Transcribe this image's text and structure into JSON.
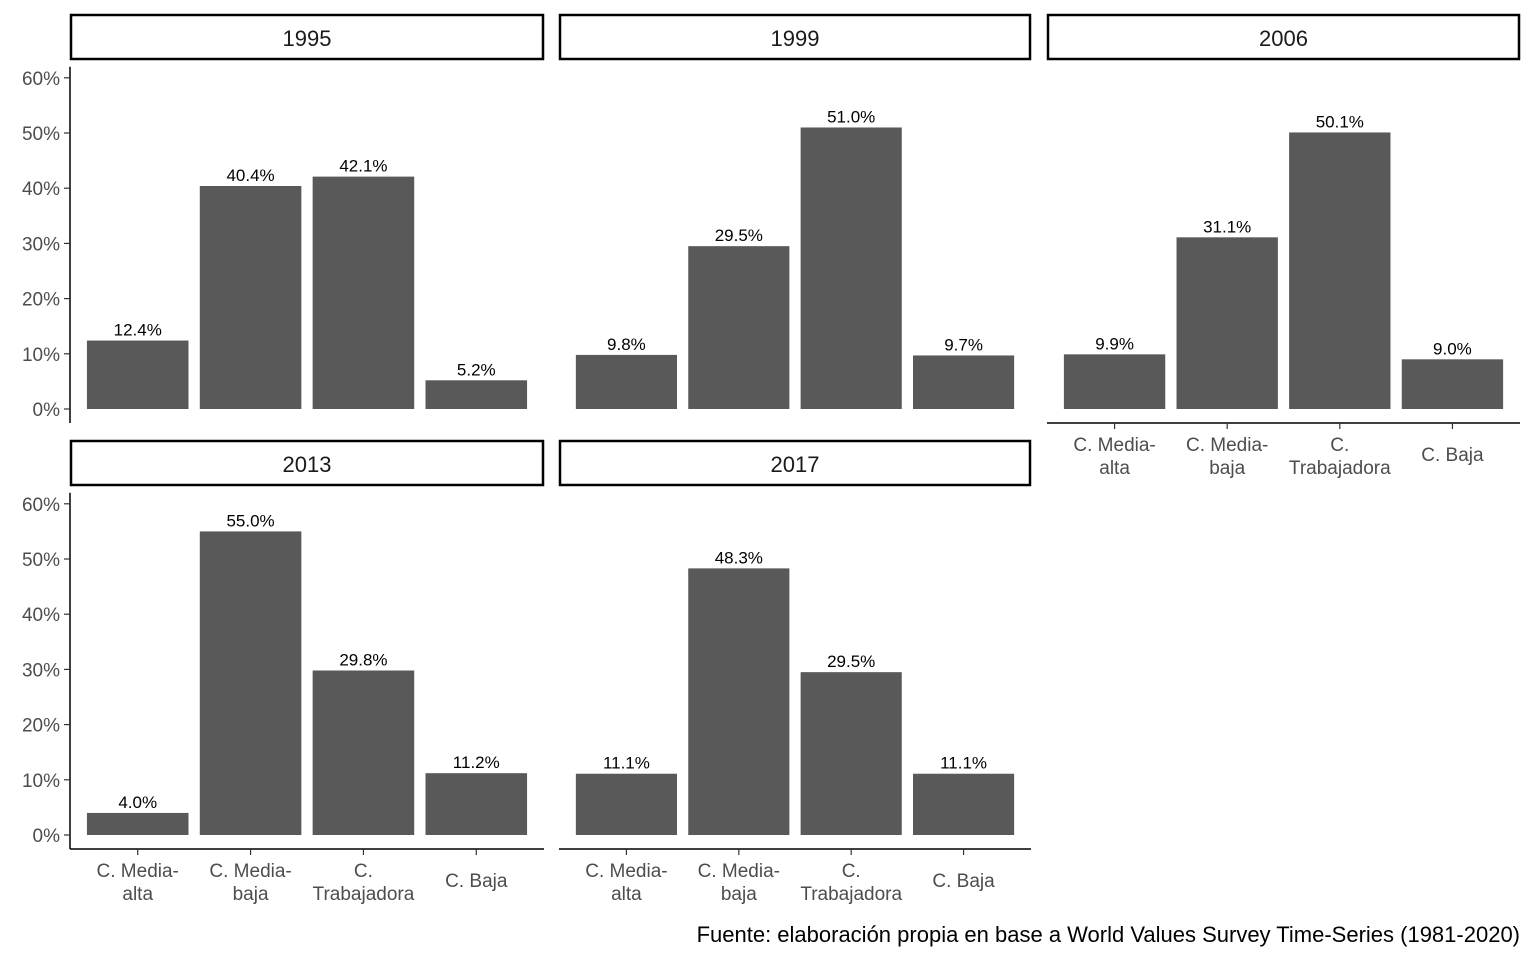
{
  "chart_data": {
    "type": "bar",
    "layout": "facet-wrap",
    "facet_columns": 3,
    "categories": [
      [
        "C. Media-",
        "alta"
      ],
      [
        "C. Media-",
        "baja"
      ],
      [
        "C.",
        "Trabajadora"
      ],
      [
        "C. Baja"
      ]
    ],
    "ylim": [
      0,
      0.62
    ],
    "yticks": [
      {
        "value": 0,
        "label": "0%"
      },
      {
        "value": 0.1,
        "label": "10%"
      },
      {
        "value": 0.2,
        "label": "20%"
      },
      {
        "value": 0.3,
        "label": "30%"
      },
      {
        "value": 0.4,
        "label": "40%"
      },
      {
        "value": 0.5,
        "label": "50%"
      },
      {
        "value": 0.6,
        "label": "60%"
      }
    ],
    "xlabel": "",
    "ylabel": "",
    "bar_color": "#595959",
    "grid": false,
    "legend": "none",
    "panels": [
      {
        "title": "1995",
        "values": [
          0.124,
          0.404,
          0.421,
          0.052
        ],
        "labels": [
          "12.4%",
          "40.4%",
          "42.1%",
          "5.2%"
        ]
      },
      {
        "title": "1999",
        "values": [
          0.098,
          0.295,
          0.51,
          0.097
        ],
        "labels": [
          "9.8%",
          "29.5%",
          "51.0%",
          "9.7%"
        ]
      },
      {
        "title": "2006",
        "values": [
          0.099,
          0.311,
          0.501,
          0.09
        ],
        "labels": [
          "9.9%",
          "31.1%",
          "50.1%",
          "9.0%"
        ]
      },
      {
        "title": "2013",
        "values": [
          0.04,
          0.55,
          0.298,
          0.112
        ],
        "labels": [
          "4.0%",
          "55.0%",
          "29.8%",
          "11.2%"
        ]
      },
      {
        "title": "2017",
        "values": [
          0.111,
          0.483,
          0.295,
          0.111
        ],
        "labels": [
          "11.1%",
          "48.3%",
          "29.5%",
          "11.1%"
        ]
      }
    ],
    "caption": "Fuente: elaboración propia en base a World Values Survey Time-Series (1981-2020)"
  }
}
